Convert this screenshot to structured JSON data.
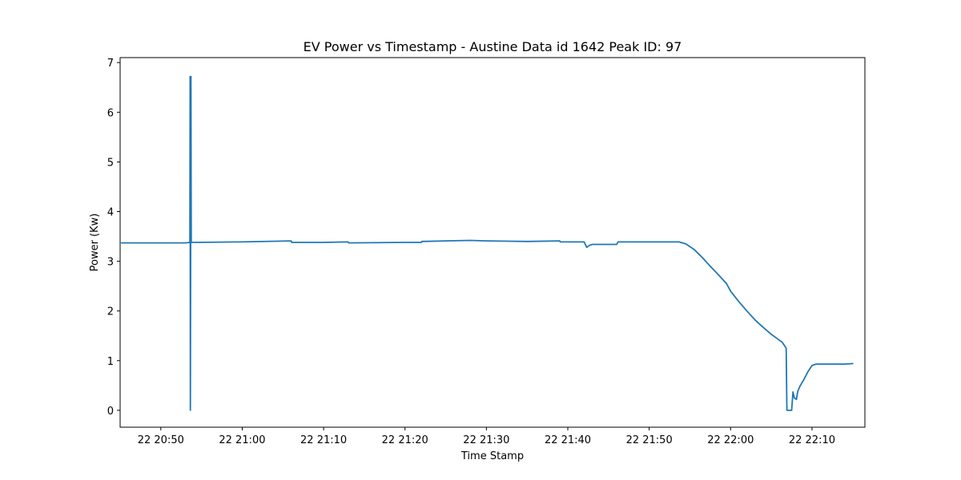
{
  "chart_data": {
    "type": "line",
    "title": "EV Power vs Timestamp - Austine Data id 1642 Peak ID: 97",
    "xlabel": "Time Stamp",
    "ylabel": "Power (Kw)",
    "xlim": [
      "20:45:00",
      "22:16:30"
    ],
    "ylim": [
      -0.34,
      7.1
    ],
    "grid": false,
    "x_ticks": [
      "22 20:50",
      "22 21:00",
      "22 21:10",
      "22 21:20",
      "22 21:30",
      "22 21:40",
      "22 21:50",
      "22 22:00",
      "22 22:10"
    ],
    "y_ticks": [
      "0",
      "1",
      "2",
      "3",
      "4",
      "5",
      "6",
      "7"
    ],
    "series": [
      {
        "color": "#1f77b4",
        "x": [
          "20:45:10",
          "20:50:00",
          "20:53:00",
          "20:53:34",
          "20:53:36",
          "20:53:38",
          "20:53:40",
          "20:53:42",
          "20:53:44",
          "20:53:50",
          "21:00:00",
          "21:06:00",
          "21:06:05",
          "21:10:00",
          "21:13:00",
          "21:13:05",
          "21:20:00",
          "21:22:00",
          "21:22:05",
          "21:25:00",
          "21:28:00",
          "21:30:00",
          "21:35:00",
          "21:39:00",
          "21:39:05",
          "21:42:00",
          "21:42:20",
          "21:42:40",
          "21:43:00",
          "21:46:00",
          "21:46:10",
          "21:50:00",
          "21:53:40",
          "21:54:30",
          "21:55:30",
          "21:56:30",
          "21:57:30",
          "21:58:30",
          "21:59:30",
          "22:00:00",
          "22:01:00",
          "22:02:00",
          "22:03:00",
          "22:04:00",
          "22:05:00",
          "22:05:40",
          "22:06:20",
          "22:06:40",
          "22:06:50",
          "22:06:55",
          "22:07:30",
          "22:07:40",
          "22:07:50",
          "22:08:05",
          "22:08:15",
          "22:08:30",
          "22:09:00",
          "22:09:30",
          "22:10:00",
          "22:10:30",
          "22:11:00",
          "22:12:00",
          "22:13:00",
          "22:14:00",
          "22:15:00"
        ],
        "y": [
          3.37,
          3.37,
          3.37,
          3.38,
          6.72,
          0.0,
          3.38,
          6.72,
          3.38,
          3.38,
          3.39,
          3.41,
          3.38,
          3.38,
          3.39,
          3.37,
          3.38,
          3.38,
          3.4,
          3.41,
          3.42,
          3.41,
          3.4,
          3.41,
          3.39,
          3.39,
          3.28,
          3.32,
          3.34,
          3.34,
          3.39,
          3.39,
          3.39,
          3.35,
          3.24,
          3.08,
          2.9,
          2.73,
          2.55,
          2.4,
          2.19,
          2.0,
          1.82,
          1.67,
          1.53,
          1.45,
          1.37,
          1.29,
          1.25,
          0.0,
          0.0,
          0.37,
          0.25,
          0.22,
          0.38,
          0.48,
          0.62,
          0.78,
          0.9,
          0.93,
          0.93,
          0.93,
          0.93,
          0.93,
          0.94
        ]
      }
    ]
  }
}
